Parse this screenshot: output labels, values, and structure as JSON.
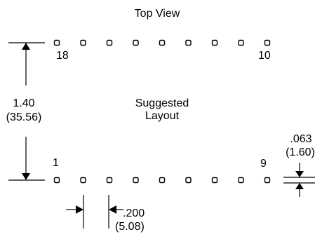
{
  "view_label": "Top View",
  "layout_label_line1": "Suggested",
  "layout_label_line2": "Layout",
  "pins": {
    "top_left": "18",
    "top_right": "10",
    "bottom_left": "1",
    "bottom_right": "9",
    "pads_per_row": 9
  },
  "dimensions": {
    "height_in": "1.40",
    "height_mm": "(35.56)",
    "pitch_in": ".200",
    "pitch_mm": "(5.08)",
    "pad_in": ".063",
    "pad_mm": "(1.60)"
  }
}
